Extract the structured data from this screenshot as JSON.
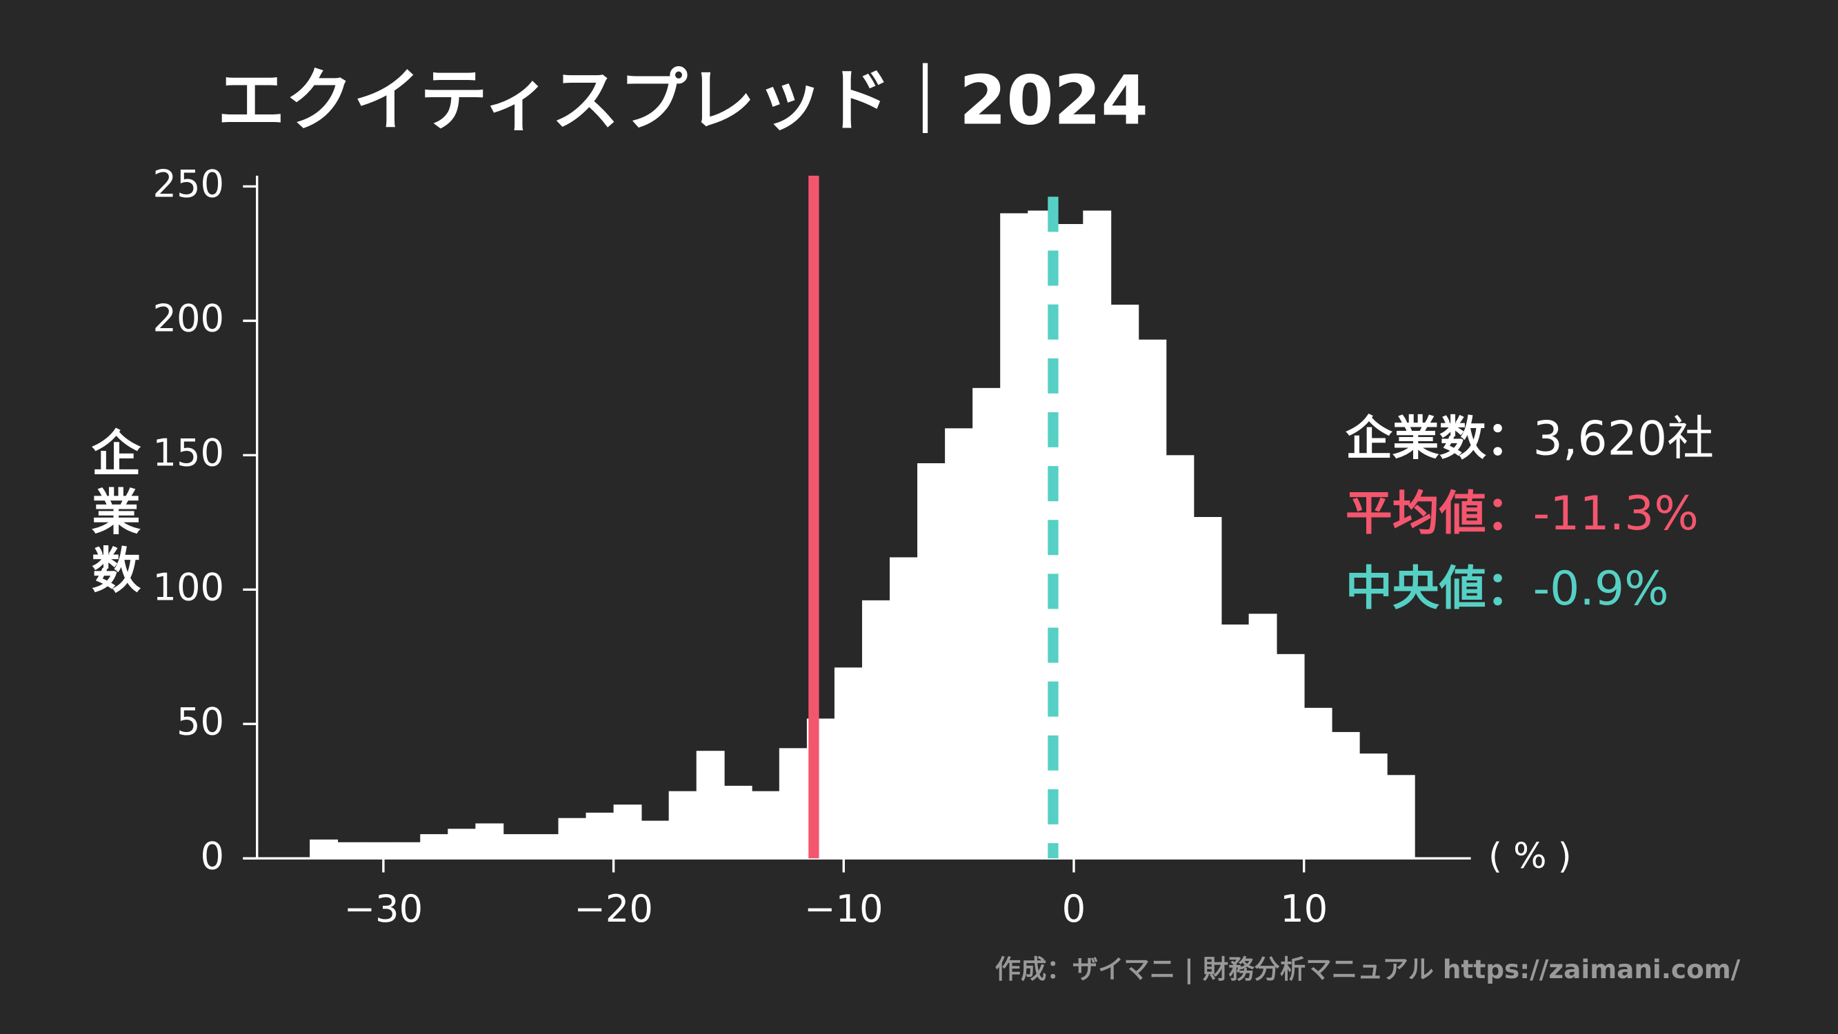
{
  "chart_data": {
    "type": "histogram",
    "title": "エクイティスプレッド｜2024",
    "ylabel": "企業数",
    "xlabel": "( % )",
    "footer": "作成：ザイマニ | 財務分析マニュアル https://zaimani.com/",
    "bins": [
      -33.2,
      -32.0,
      -30.8,
      -29.6,
      -28.4,
      -27.2,
      -26.0,
      -24.8,
      -23.6,
      -22.4,
      -21.2,
      -20.0,
      -18.8,
      -17.6,
      -16.4,
      -15.2,
      -14.0,
      -12.8,
      -11.6,
      -10.4,
      -9.2,
      -8.0,
      -6.8,
      -5.6,
      -4.4,
      -3.2,
      -2.0,
      -0.8,
      0.4,
      1.6,
      2.8,
      4.0,
      5.2,
      6.4,
      7.6,
      8.8,
      10.0,
      11.2,
      12.4,
      13.6,
      14.8
    ],
    "values": [
      7,
      6,
      6,
      6,
      9,
      11,
      13,
      9,
      9,
      15,
      17,
      20,
      14,
      25,
      40,
      27,
      25,
      41,
      52,
      71,
      96,
      112,
      147,
      160,
      175,
      240,
      241,
      236,
      241,
      206,
      193,
      150,
      127,
      87,
      91,
      76,
      56,
      47,
      39,
      31
    ],
    "color": "#ffffff",
    "xlim": [
      -36.1,
      17.25
    ],
    "xticks": [
      {
        "value": -30,
        "label": "−30"
      },
      {
        "value": -20,
        "label": "−20"
      },
      {
        "value": -10,
        "label": "−10"
      },
      0,
      10
    ],
    "ylim": [
      0,
      254
    ],
    "yticks": [
      0,
      50,
      100,
      150,
      200,
      250
    ],
    "stats": [
      {
        "label": "企業数：",
        "value_label": "3,620社",
        "color": "#ffffff"
      },
      {
        "label": "平均値：",
        "value": -11.3,
        "value_label": "-11.3%",
        "color": "#f4566e",
        "line": "solid"
      },
      {
        "label": "中央値：",
        "value": -0.9,
        "value_label": "-0.9%",
        "color": "#56d0c4",
        "line": "dashed"
      }
    ]
  }
}
